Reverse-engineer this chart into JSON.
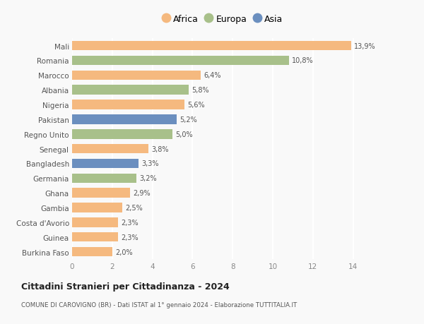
{
  "categories": [
    "Mali",
    "Romania",
    "Marocco",
    "Albania",
    "Nigeria",
    "Pakistan",
    "Regno Unito",
    "Senegal",
    "Bangladesh",
    "Germania",
    "Ghana",
    "Gambia",
    "Costa d'Avorio",
    "Guinea",
    "Burkina Faso"
  ],
  "values": [
    13.9,
    10.8,
    6.4,
    5.8,
    5.6,
    5.2,
    5.0,
    3.8,
    3.3,
    3.2,
    2.9,
    2.5,
    2.3,
    2.3,
    2.0
  ],
  "labels": [
    "13,9%",
    "10,8%",
    "6,4%",
    "5,8%",
    "5,6%",
    "5,2%",
    "5,0%",
    "3,8%",
    "3,3%",
    "3,2%",
    "2,9%",
    "2,5%",
    "2,3%",
    "2,3%",
    "2,0%"
  ],
  "colors": [
    "#F5B97F",
    "#A8C08A",
    "#F5B97F",
    "#A8C08A",
    "#F5B97F",
    "#6B8FBF",
    "#A8C08A",
    "#F5B97F",
    "#6B8FBF",
    "#A8C08A",
    "#F5B97F",
    "#F5B97F",
    "#F5B97F",
    "#F5B97F",
    "#F5B97F"
  ],
  "legend_labels": [
    "Africa",
    "Europa",
    "Asia"
  ],
  "legend_colors": [
    "#F5B97F",
    "#A8C08A",
    "#6B8FBF"
  ],
  "title": "Cittadini Stranieri per Cittadinanza - 2024",
  "subtitle": "COMUNE DI CAROVIGNO (BR) - Dati ISTAT al 1° gennaio 2024 - Elaborazione TUTTITALIA.IT",
  "xlim": [
    0,
    15
  ],
  "xticks": [
    0,
    2,
    4,
    6,
    8,
    10,
    12,
    14
  ],
  "bg_color": "#f9f9f9",
  "plot_bg_color": "#f9f9f9",
  "grid_color": "#ffffff",
  "bar_height": 0.65
}
